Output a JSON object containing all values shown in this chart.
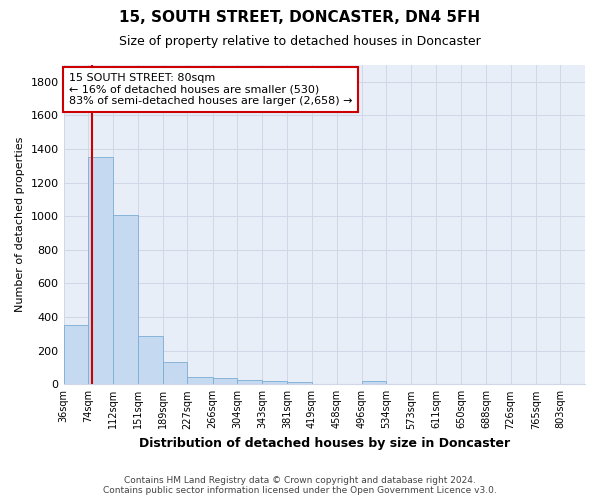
{
  "title": "15, SOUTH STREET, DONCASTER, DN4 5FH",
  "subtitle": "Size of property relative to detached houses in Doncaster",
  "xlabel": "Distribution of detached houses by size in Doncaster",
  "ylabel": "Number of detached properties",
  "footer_line1": "Contains HM Land Registry data © Crown copyright and database right 2024.",
  "footer_line2": "Contains public sector information licensed under the Open Government Licence v3.0.",
  "bin_edges": [
    36,
    74,
    112,
    151,
    189,
    227,
    266,
    304,
    343,
    381,
    419,
    458,
    496,
    534,
    573,
    611,
    650,
    688,
    726,
    765,
    803,
    841
  ],
  "bin_labels": [
    "36sqm",
    "74sqm",
    "112sqm",
    "151sqm",
    "189sqm",
    "227sqm",
    "266sqm",
    "304sqm",
    "343sqm",
    "381sqm",
    "419sqm",
    "458sqm",
    "496sqm",
    "534sqm",
    "573sqm",
    "611sqm",
    "650sqm",
    "688sqm",
    "726sqm",
    "765sqm",
    "803sqm"
  ],
  "bar_values": [
    355,
    1350,
    1010,
    290,
    130,
    45,
    35,
    25,
    20,
    15,
    0,
    0,
    20,
    0,
    0,
    0,
    0,
    0,
    0,
    0,
    0
  ],
  "bar_color": "#c5d9f0",
  "bar_edge_color": "#7badd4",
  "grid_color": "#d0d8e8",
  "background_color": "#e8eef8",
  "property_value": 80,
  "property_line_color": "#cc0000",
  "annotation_line1": "15 SOUTH STREET: 80sqm",
  "annotation_line2": "← 16% of detached houses are smaller (530)",
  "annotation_line3": "83% of semi-detached houses are larger (2,658) →",
  "annotation_box_color": "#cc0000",
  "ylim": [
    0,
    1900
  ],
  "yticks": [
    0,
    200,
    400,
    600,
    800,
    1000,
    1200,
    1400,
    1600,
    1800
  ],
  "title_fontsize": 11,
  "subtitle_fontsize": 9,
  "ylabel_fontsize": 8,
  "xlabel_fontsize": 9
}
